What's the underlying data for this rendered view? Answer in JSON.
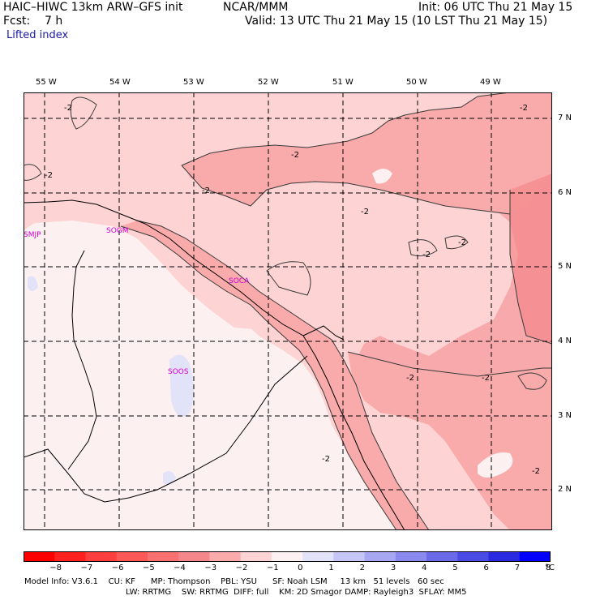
{
  "header": {
    "model": "HAIC–HIWC 13km ARW–GFS init",
    "org": "NCAR/MMM",
    "init": "Init: 06 UTC Thu 21 May 15",
    "fcst": "Fcst:    7 h",
    "valid": "Valid: 13 UTC Thu 21 May 15 (10 LST Thu 21 May 15)",
    "field": "Lifted index"
  },
  "map": {
    "lon_labels": [
      "55 W",
      "54 W",
      "53 W",
      "52 W",
      "51 W",
      "50 W",
      "49 W"
    ],
    "lat_labels": [
      "7 N",
      "6 N",
      "5 N",
      "4 N",
      "3 N",
      "2 N"
    ],
    "stations": [
      "SMJP",
      "SOGM",
      "SOCA",
      "SOOS"
    ],
    "contour_labels": [
      "-2",
      "-2",
      "-2",
      "-2",
      "-2",
      "-2",
      "-2",
      "-2",
      "-2",
      "-2",
      "-2",
      "-2"
    ],
    "colors": {
      "lt_m3": "#f4878a",
      "lt_m2": "#f9aaaa",
      "lt_m1": "#fdd3d3",
      "gt_0": "#fdf0f0",
      "gt_1": "#e2e2f8"
    }
  },
  "colorbar": {
    "ticks": [
      "−8",
      "−7",
      "−6",
      "−5",
      "−4",
      "−3",
      "−2",
      "−1",
      "0",
      "1",
      "2",
      "3",
      "4",
      "5",
      "6",
      "7",
      "8"
    ],
    "unit": "°C",
    "colors": [
      "#ff0000",
      "#ff2020",
      "#fd3e3e",
      "#fc5858",
      "#f97070",
      "#f4878a",
      "#f9aaaa",
      "#fdd3d3",
      "#fdf0f0",
      "#e2e2f8",
      "#c6c6f6",
      "#a8a8f2",
      "#8a8aee",
      "#6a6ae8",
      "#4a4ae4",
      "#2a2ae0",
      "#0000ff"
    ]
  },
  "footer": {
    "line1": "Model Info: V3.6.1    CU: KF      MP: Thompson    PBL: YSU      SF: Noah LSM     13 km   51 levels   60 sec",
    "line2": "LW: RRTMG    SW: RRTMG  DIFF: full    KM: 2D Smagor DAMP: Rayleigh3  SFLAY: MM5"
  }
}
